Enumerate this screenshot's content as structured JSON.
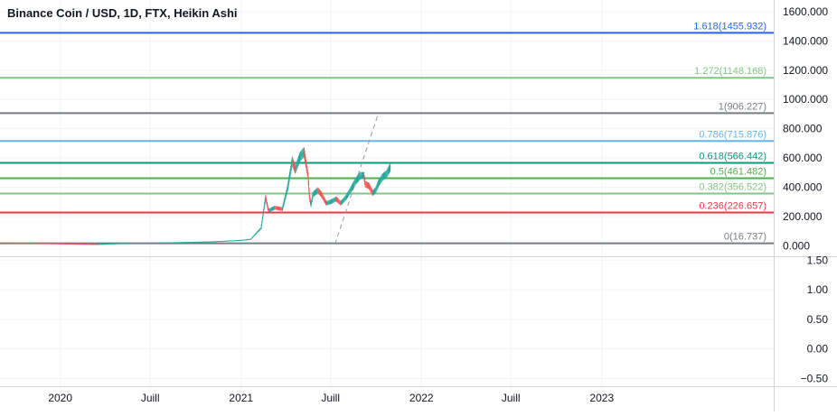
{
  "header": {
    "title": "Binance Coin / USD, 1D, FTX, Heikin Ashi"
  },
  "chart_data": {
    "type": "candlestick",
    "title": "Binance Coin / USD, 1D, FTX, Heikin Ashi",
    "upper_pane": {
      "ylim": [
        -60,
        1680
      ],
      "y_ticks": [
        {
          "value": 1600,
          "label": "1600.000"
        },
        {
          "value": 1400,
          "label": "1400.000"
        },
        {
          "value": 1200,
          "label": "1200.000"
        },
        {
          "value": 1000,
          "label": "1000.000"
        },
        {
          "value": 800,
          "label": "800.000"
        },
        {
          "value": 600,
          "label": "600.000"
        },
        {
          "value": 400,
          "label": "400.000"
        },
        {
          "value": 200,
          "label": "200.000"
        },
        {
          "value": 0,
          "label": "0.000"
        }
      ]
    },
    "lower_pane": {
      "ylim": [
        -0.63,
        1.52
      ],
      "y_ticks": [
        {
          "value": 1.5,
          "label": "1.50"
        },
        {
          "value": 1.0,
          "label": "1.00"
        },
        {
          "value": 0.5,
          "label": "0.50"
        },
        {
          "value": 0.0,
          "label": "0.00"
        },
        {
          "value": -0.5,
          "label": "−0.50"
        }
      ]
    },
    "x_axis": {
      "start": "2019-09-01",
      "end": "2023-12-15",
      "ticks": [
        {
          "date": "2020-01-01",
          "label": "2020"
        },
        {
          "date": "2020-07-01",
          "label": "Juill"
        },
        {
          "date": "2021-01-01",
          "label": "2021"
        },
        {
          "date": "2021-07-01",
          "label": "Juill"
        },
        {
          "date": "2022-01-01",
          "label": "2022"
        },
        {
          "date": "2022-07-01",
          "label": "Juill"
        },
        {
          "date": "2023-01-01",
          "label": "2023"
        }
      ]
    },
    "fib_levels": [
      {
        "ratio": "1.618",
        "value": 1455.932,
        "label": "1.618(1455.932)",
        "color": "#2962ff"
      },
      {
        "ratio": "1.272",
        "value": 1148.168,
        "label": "1.272(1148.168)",
        "color": "#81c784"
      },
      {
        "ratio": "1",
        "value": 906.227,
        "label": "1(906.227)",
        "color": "#787b86"
      },
      {
        "ratio": "0.786",
        "value": 715.876,
        "label": "0.786(715.876)",
        "color": "#64b5f6"
      },
      {
        "ratio": "0.618",
        "value": 566.442,
        "label": "0.618(566.442)",
        "color": "#089981"
      },
      {
        "ratio": "0.5",
        "value": 461.482,
        "label": "0.5(461.482)",
        "color": "#4caf50"
      },
      {
        "ratio": "0.382",
        "value": 356.522,
        "label": "0.382(356.522)",
        "color": "#81c784"
      },
      {
        "ratio": "0.236",
        "value": 226.657,
        "label": "0.236(226.657)",
        "color": "#f23645"
      },
      {
        "ratio": "0",
        "value": 16.737,
        "label": "0(16.737)",
        "color": "#787b86"
      }
    ],
    "trend_line": {
      "start": {
        "date": "2021-07-10",
        "value": 10
      },
      "end": {
        "date": "2021-10-06",
        "value": 906
      }
    },
    "price_path": [
      [
        "2019-09-01",
        20
      ],
      [
        "2019-12-01",
        16
      ],
      [
        "2020-03-13",
        10
      ],
      [
        "2020-05-01",
        16
      ],
      [
        "2020-08-15",
        22
      ],
      [
        "2020-11-01",
        28
      ],
      [
        "2021-01-01",
        38
      ],
      [
        "2021-01-20",
        45
      ],
      [
        "2021-02-10",
        120
      ],
      [
        "2021-02-19",
        330
      ],
      [
        "2021-02-25",
        240
      ],
      [
        "2021-03-10",
        260
      ],
      [
        "2021-03-25",
        250
      ],
      [
        "2021-04-05",
        400
      ],
      [
        "2021-04-14",
        580
      ],
      [
        "2021-04-20",
        520
      ],
      [
        "2021-04-30",
        610
      ],
      [
        "2021-05-08",
        640
      ],
      [
        "2021-05-12",
        560
      ],
      [
        "2021-05-16",
        480
      ],
      [
        "2021-05-19",
        330
      ],
      [
        "2021-05-22",
        280
      ],
      [
        "2021-05-26",
        350
      ],
      [
        "2021-06-05",
        380
      ],
      [
        "2021-06-12",
        350
      ],
      [
        "2021-06-22",
        290
      ],
      [
        "2021-07-01",
        300
      ],
      [
        "2021-07-12",
        320
      ],
      [
        "2021-07-21",
        290
      ],
      [
        "2021-08-01",
        330
      ],
      [
        "2021-08-10",
        380
      ],
      [
        "2021-08-20",
        440
      ],
      [
        "2021-08-30",
        480
      ],
      [
        "2021-09-06",
        480
      ],
      [
        "2021-09-09",
        420
      ],
      [
        "2021-09-16",
        410
      ],
      [
        "2021-09-24",
        360
      ],
      [
        "2021-09-30",
        380
      ],
      [
        "2021-10-06",
        430
      ],
      [
        "2021-10-14",
        470
      ],
      [
        "2021-10-22",
        490
      ],
      [
        "2021-10-30",
        540
      ]
    ]
  }
}
